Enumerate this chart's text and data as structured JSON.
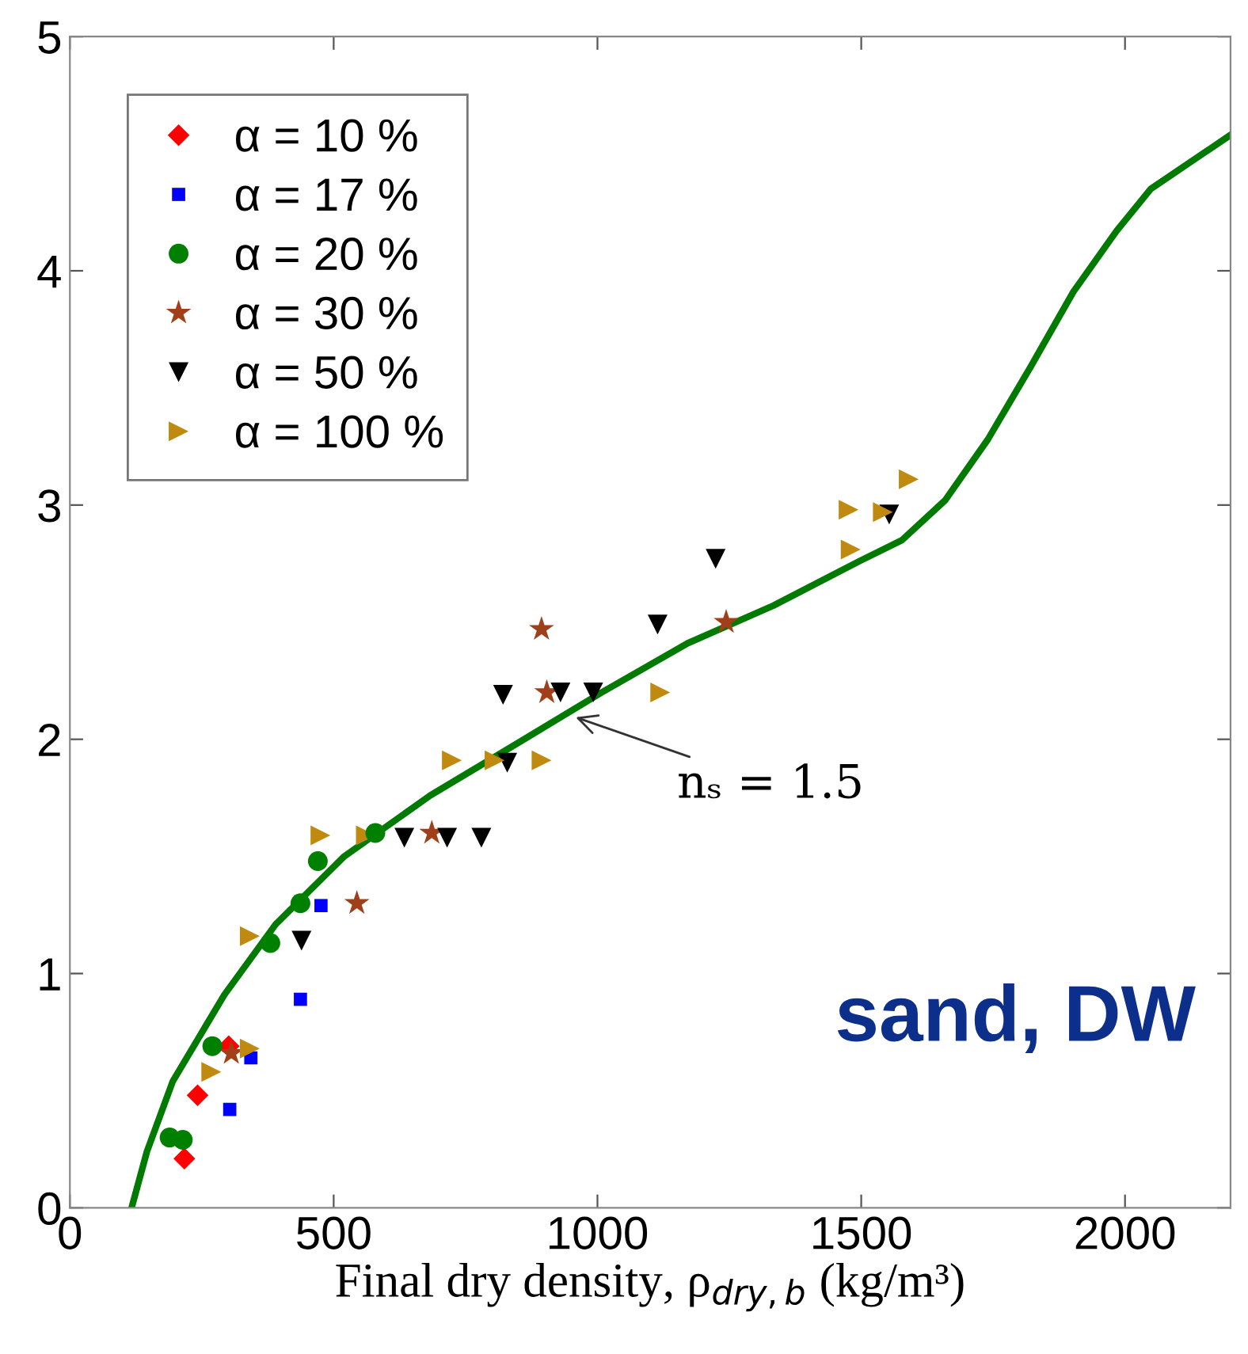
{
  "chart_data": {
    "type": "scatter",
    "xlabel": "Final dry density, ρ$_{dry,b}$ (kg/m³)",
    "xlim": [
      0,
      2200
    ],
    "ylim": [
      0,
      5
    ],
    "xticks": [
      0,
      500,
      1000,
      1500,
      2000
    ],
    "yticks": [
      0,
      1,
      2,
      3,
      4,
      5
    ],
    "grid": false,
    "legend": "top left",
    "annotations": [
      {
        "text": "nₛ = 1.5",
        "x": 951,
        "y": 2.1
      },
      "sand, DW"
    ],
    "series": [
      {
        "name": "α = 10 %",
        "color": "#ff0000",
        "marker": "diamond",
        "x": [
          217,
          242,
          301
        ],
        "values": [
          0.21,
          0.48,
          0.69
        ]
      },
      {
        "name": "α = 17 %",
        "color": "#0000ff",
        "marker": "square",
        "x": [
          303,
          343,
          437,
          476
        ],
        "values": [
          0.42,
          0.64,
          0.89,
          1.29
        ]
      },
      {
        "name": "α = 20 %",
        "color": "#008000",
        "marker": "circle",
        "x": [
          189,
          214,
          270,
          380,
          437,
          470,
          579
        ],
        "values": [
          0.3,
          0.29,
          0.69,
          1.13,
          1.3,
          1.48,
          1.6
        ]
      },
      {
        "name": "α = 30 %",
        "color": "#a0401a",
        "marker": "star",
        "x": [
          306,
          544,
          686,
          894,
          904,
          1244
        ],
        "values": [
          0.66,
          1.3,
          1.6,
          2.47,
          2.2,
          2.5
        ]
      },
      {
        "name": "α = 50 %",
        "color": "#000000",
        "marker": "triangle_down",
        "x": [
          439,
          634,
          715,
          780,
          829,
          821,
          930,
          992,
          1114,
          1224,
          1553
        ],
        "values": [
          1.14,
          1.58,
          1.58,
          1.58,
          1.9,
          2.19,
          2.2,
          2.2,
          2.49,
          2.77,
          2.96
        ]
      },
      {
        "name": "α = 100 %",
        "color": "#c08a10",
        "marker": "triangle_right",
        "x": [
          268,
          341,
          341,
          475,
          561,
          724,
          805,
          894,
          1119,
          1480,
          1476,
          1541,
          1590
        ],
        "values": [
          0.58,
          0.68,
          1.16,
          1.59,
          1.59,
          1.91,
          1.91,
          1.91,
          2.2,
          2.81,
          2.98,
          2.97,
          3.11
        ]
      },
      {
        "type": "line",
        "color": "#007a00",
        "marker": "none",
        "x": [
          117,
          146,
          195,
          293,
          390,
          520,
          683,
          846,
          1008,
          1171,
          1333,
          1496,
          1577,
          1659,
          1740,
          1821,
          1902,
          1984,
          2049,
          2200
        ],
        "values": [
          0,
          0.24,
          0.54,
          0.91,
          1.21,
          1.5,
          1.76,
          1.98,
          2.2,
          2.41,
          2.57,
          2.76,
          2.85,
          3.02,
          3.28,
          3.59,
          3.91,
          4.17,
          4.35,
          4.58
        ]
      }
    ]
  }
}
